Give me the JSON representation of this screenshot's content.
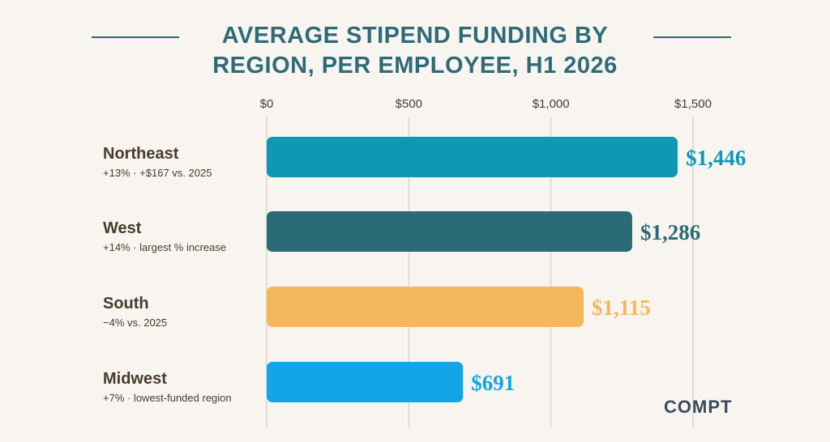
{
  "chart_data": {
    "type": "bar",
    "orientation": "horizontal",
    "title": "AVERAGE STIPEND FUNDING BY REGION, PER EMPLOYEE, H1 2026",
    "categories": [
      "Northeast",
      "West",
      "South",
      "Midwest"
    ],
    "notes": [
      "+13% · +$167 vs. 2025",
      "+14% · largest % increase",
      "−4% vs. 2025",
      "+7% · lowest-funded region"
    ],
    "values": [
      1446,
      1286,
      1115,
      691
    ],
    "value_labels": [
      "$1,446",
      "$1,286",
      "$1,115",
      "$691"
    ],
    "colors": [
      "#0f97b5",
      "#2b6b77",
      "#f4b75b",
      "#12a6e6"
    ],
    "x_ticks": [
      0,
      500,
      1000,
      1500
    ],
    "x_tick_labels": [
      "$0",
      "$500",
      "$1,000",
      "$1,500"
    ],
    "xlim": [
      0,
      1500
    ],
    "grid": true,
    "legend": "none"
  },
  "brand": {
    "logo_text": "COMPT"
  }
}
